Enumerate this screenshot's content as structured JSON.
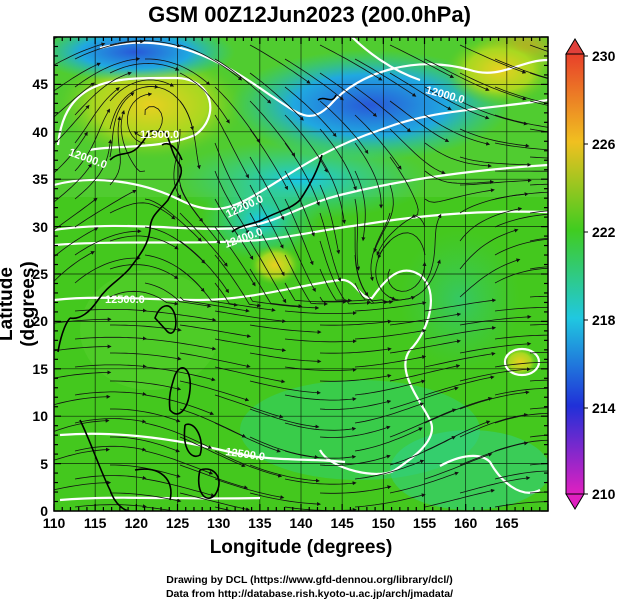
{
  "title": "GSM 00Z12Jun2023 (200.0hPa)",
  "axes": {
    "xlabel": "Longitude (degrees)",
    "ylabel": "Latitude  (degrees)",
    "xticks": [
      "110",
      "115",
      "120",
      "125",
      "130",
      "135",
      "140",
      "145",
      "150",
      "155",
      "160",
      "165"
    ],
    "yticks": [
      "0",
      "5",
      "10",
      "15",
      "20",
      "25",
      "30",
      "35",
      "40",
      "45"
    ]
  },
  "colorbar": {
    "ticks": [
      "230",
      "226",
      "222",
      "218",
      "214",
      "210"
    ]
  },
  "contour_labels": [
    {
      "text": "11900.0"
    },
    {
      "text": "12000.0"
    },
    {
      "text": "12200.0"
    },
    {
      "text": "12400.0"
    },
    {
      "text": "12500.0"
    },
    {
      "text": "12500.0"
    },
    {
      "text": "12000.0"
    }
  ],
  "credits": {
    "line1": "Drawing by DCL (https://www.gfd-dennou.org/library/dcl/)",
    "line2": "Data from http://database.rish.kyoto-u.ac.jp/arch/jmadata/"
  },
  "map_data": {
    "type": "wind_streamlines_over_shaded_field",
    "region": {
      "lon_range": [
        110,
        170
      ],
      "lat_range": [
        0,
        50
      ]
    },
    "field_range": [
      210,
      230
    ],
    "colors": {
      "high": "#e83a2a",
      "mid_high": "#f0d020",
      "mid": "#4ac820",
      "mid_low": "#20c8e0",
      "low": "#2030d8",
      "lowest": "#e020c0"
    }
  }
}
